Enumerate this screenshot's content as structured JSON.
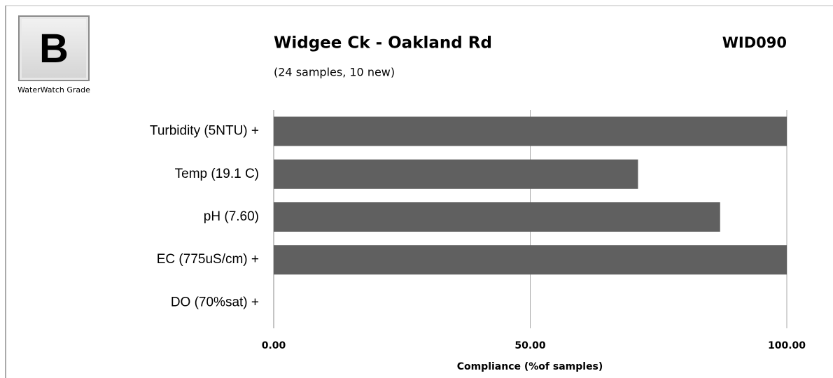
{
  "grade": {
    "letter": "B",
    "caption": "WaterWatch Grade"
  },
  "chart_data": {
    "type": "hbar",
    "title": "Widgee Ck - Oakland  Rd",
    "site_code": "WID090",
    "subtitle": "(24 samples, 10 new)",
    "categories": [
      "Turbidity (5NTU) +",
      "Temp (19.1 C)",
      "pH (7.60)",
      "EC (775uS/cm) +",
      "DO (70%sat) +"
    ],
    "values": [
      100,
      71,
      87,
      100,
      0
    ],
    "color": "#606060",
    "xlabel": "Compliance (%of samples)",
    "xlim": [
      0,
      100
    ],
    "xticks": [
      {
        "value": 0,
        "label": "0.00"
      },
      {
        "value": 50,
        "label": "50.00"
      },
      {
        "value": 100,
        "label": "100.00"
      }
    ],
    "grid": true
  }
}
